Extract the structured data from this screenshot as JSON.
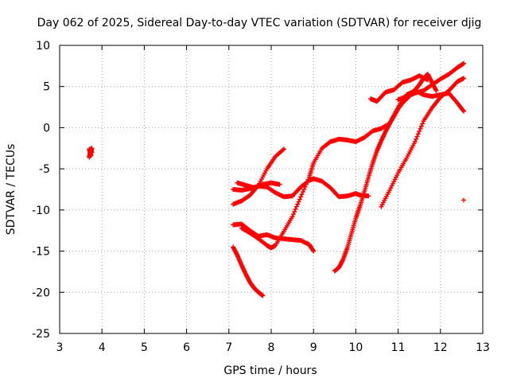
{
  "chart_data": {
    "type": "scatter",
    "title": "Day 062 of 2025, Sidereal Day-to-day VTEC variation (SDTVAR) for receiver djig",
    "xlabel": "GPS time / hours",
    "ylabel": "SDTVAR / TECUs",
    "xlim": [
      3,
      13
    ],
    "ylim": [
      -25,
      10
    ],
    "xticks": [
      "3",
      "4",
      "5",
      "6",
      "7",
      "8",
      "9",
      "10",
      "11",
      "12",
      "13"
    ],
    "yticks": [
      "10",
      "5",
      "0",
      "-5",
      "-10",
      "-15",
      "-20",
      "-25"
    ],
    "grid": true,
    "marker": "plus",
    "color": "#ff0000",
    "series": [
      {
        "x": [
          3.7,
          3.72,
          3.74,
          3.76,
          3.72,
          3.76,
          3.7,
          3.74,
          3.72,
          3.74
        ],
        "y": [
          -3.6,
          -3.2,
          -2.9,
          -2.5,
          -2.7,
          -3.0,
          -2.6,
          -3.4,
          -3.1,
          -2.8
        ]
      },
      {
        "x": [
          7.1,
          7.3,
          7.5,
          7.7,
          7.9,
          8.1,
          8.3,
          8.5,
          8.7,
          8.9,
          9.0
        ],
        "y": [
          -11.8,
          -11.7,
          -12.5,
          -13.2,
          -13.0,
          -13.4,
          -13.5,
          -13.6,
          -13.7,
          -14.2,
          -15.0
        ]
      },
      {
        "x": [
          7.1,
          7.2,
          7.3,
          7.4,
          7.5,
          7.6,
          7.7,
          7.8
        ],
        "y": [
          -14.5,
          -15.5,
          -16.7,
          -17.8,
          -18.8,
          -19.5,
          -20.0,
          -20.4
        ]
      },
      {
        "x": [
          7.1,
          7.3,
          7.5,
          7.7,
          7.9,
          8.1,
          8.3,
          8.5,
          8.7,
          8.9,
          9.0,
          9.2,
          9.4,
          9.6,
          9.8,
          10.0,
          10.1,
          10.3
        ],
        "y": [
          -7.5,
          -7.6,
          -7.4,
          -7.1,
          -7.2,
          -7.9,
          -8.4,
          -8.3,
          -7.2,
          -6.4,
          -6.2,
          -6.5,
          -7.3,
          -8.4,
          -8.3,
          -8.0,
          -8.2,
          -8.3
        ]
      },
      {
        "x": [
          7.1,
          7.3,
          7.5,
          7.7,
          7.9,
          8.1,
          8.3
        ],
        "y": [
          -9.3,
          -8.9,
          -8.2,
          -7.0,
          -5.0,
          -3.5,
          -2.6
        ]
      },
      {
        "x": [
          7.2,
          7.4,
          7.6,
          7.8,
          8.0,
          8.2
        ],
        "y": [
          -6.7,
          -7.0,
          -7.3,
          -6.9,
          -6.7,
          -6.9
        ]
      },
      {
        "x": [
          7.3,
          7.5,
          7.7,
          7.9,
          8.0
        ],
        "y": [
          -12.2,
          -12.8,
          -13.5,
          -14.3,
          -14.6
        ]
      },
      {
        "x": [
          8.0,
          8.1,
          8.3,
          8.5,
          8.7,
          8.9,
          9.0,
          9.2,
          9.4,
          9.6,
          9.8,
          10.0,
          10.2,
          10.4,
          10.6,
          10.8,
          11.0,
          11.2,
          11.4,
          11.6,
          11.8,
          12.0,
          12.2,
          12.4,
          12.55
        ],
        "y": [
          -14.6,
          -14.3,
          -12.6,
          -10.8,
          -8.4,
          -6.0,
          -4.3,
          -2.5,
          -1.7,
          -1.4,
          -1.5,
          -1.7,
          -1.2,
          -0.4,
          -0.1,
          0.5,
          2.5,
          4.0,
          4.5,
          4.0,
          3.8,
          4.0,
          4.2,
          3.0,
          2.0
        ]
      },
      {
        "x": [
          9.5,
          9.6,
          9.7,
          9.8,
          9.9,
          10.0,
          10.1,
          10.2,
          10.3,
          10.4,
          10.5,
          10.6,
          10.7,
          10.8,
          10.9,
          11.0,
          11.1,
          11.2,
          11.3,
          11.4,
          11.5,
          11.6,
          11.7,
          11.8,
          11.9
        ],
        "y": [
          -17.4,
          -17.0,
          -16.0,
          -14.6,
          -12.8,
          -11.0,
          -9.5,
          -7.8,
          -6.0,
          -4.3,
          -2.8,
          -1.6,
          -0.5,
          0.5,
          1.4,
          2.3,
          3.0,
          3.5,
          4.0,
          4.6,
          5.2,
          6.0,
          6.5,
          5.5,
          4.5
        ]
      },
      {
        "x": [
          10.6,
          10.8,
          11.0,
          11.2,
          11.4,
          11.6,
          11.8,
          12.0,
          12.2,
          12.4,
          12.55
        ],
        "y": [
          -9.6,
          -7.6,
          -5.5,
          -3.7,
          -1.7,
          0.8,
          2.4,
          3.7,
          4.5,
          5.6,
          6.0
        ]
      },
      {
        "x": [
          10.35,
          10.5,
          10.7,
          10.9,
          11.1,
          11.3,
          11.5,
          11.7
        ],
        "y": [
          3.5,
          3.2,
          4.3,
          4.6,
          5.5,
          5.8,
          6.3,
          5.8
        ]
      },
      {
        "x": [
          11.0,
          11.2,
          11.4,
          11.6,
          11.8,
          12.0,
          12.2,
          12.4,
          12.55
        ],
        "y": [
          3.4,
          3.8,
          4.2,
          4.5,
          5.2,
          5.9,
          6.5,
          7.3,
          7.8
        ]
      },
      {
        "x": [
          12.55
        ],
        "y": [
          -8.8
        ]
      }
    ]
  }
}
